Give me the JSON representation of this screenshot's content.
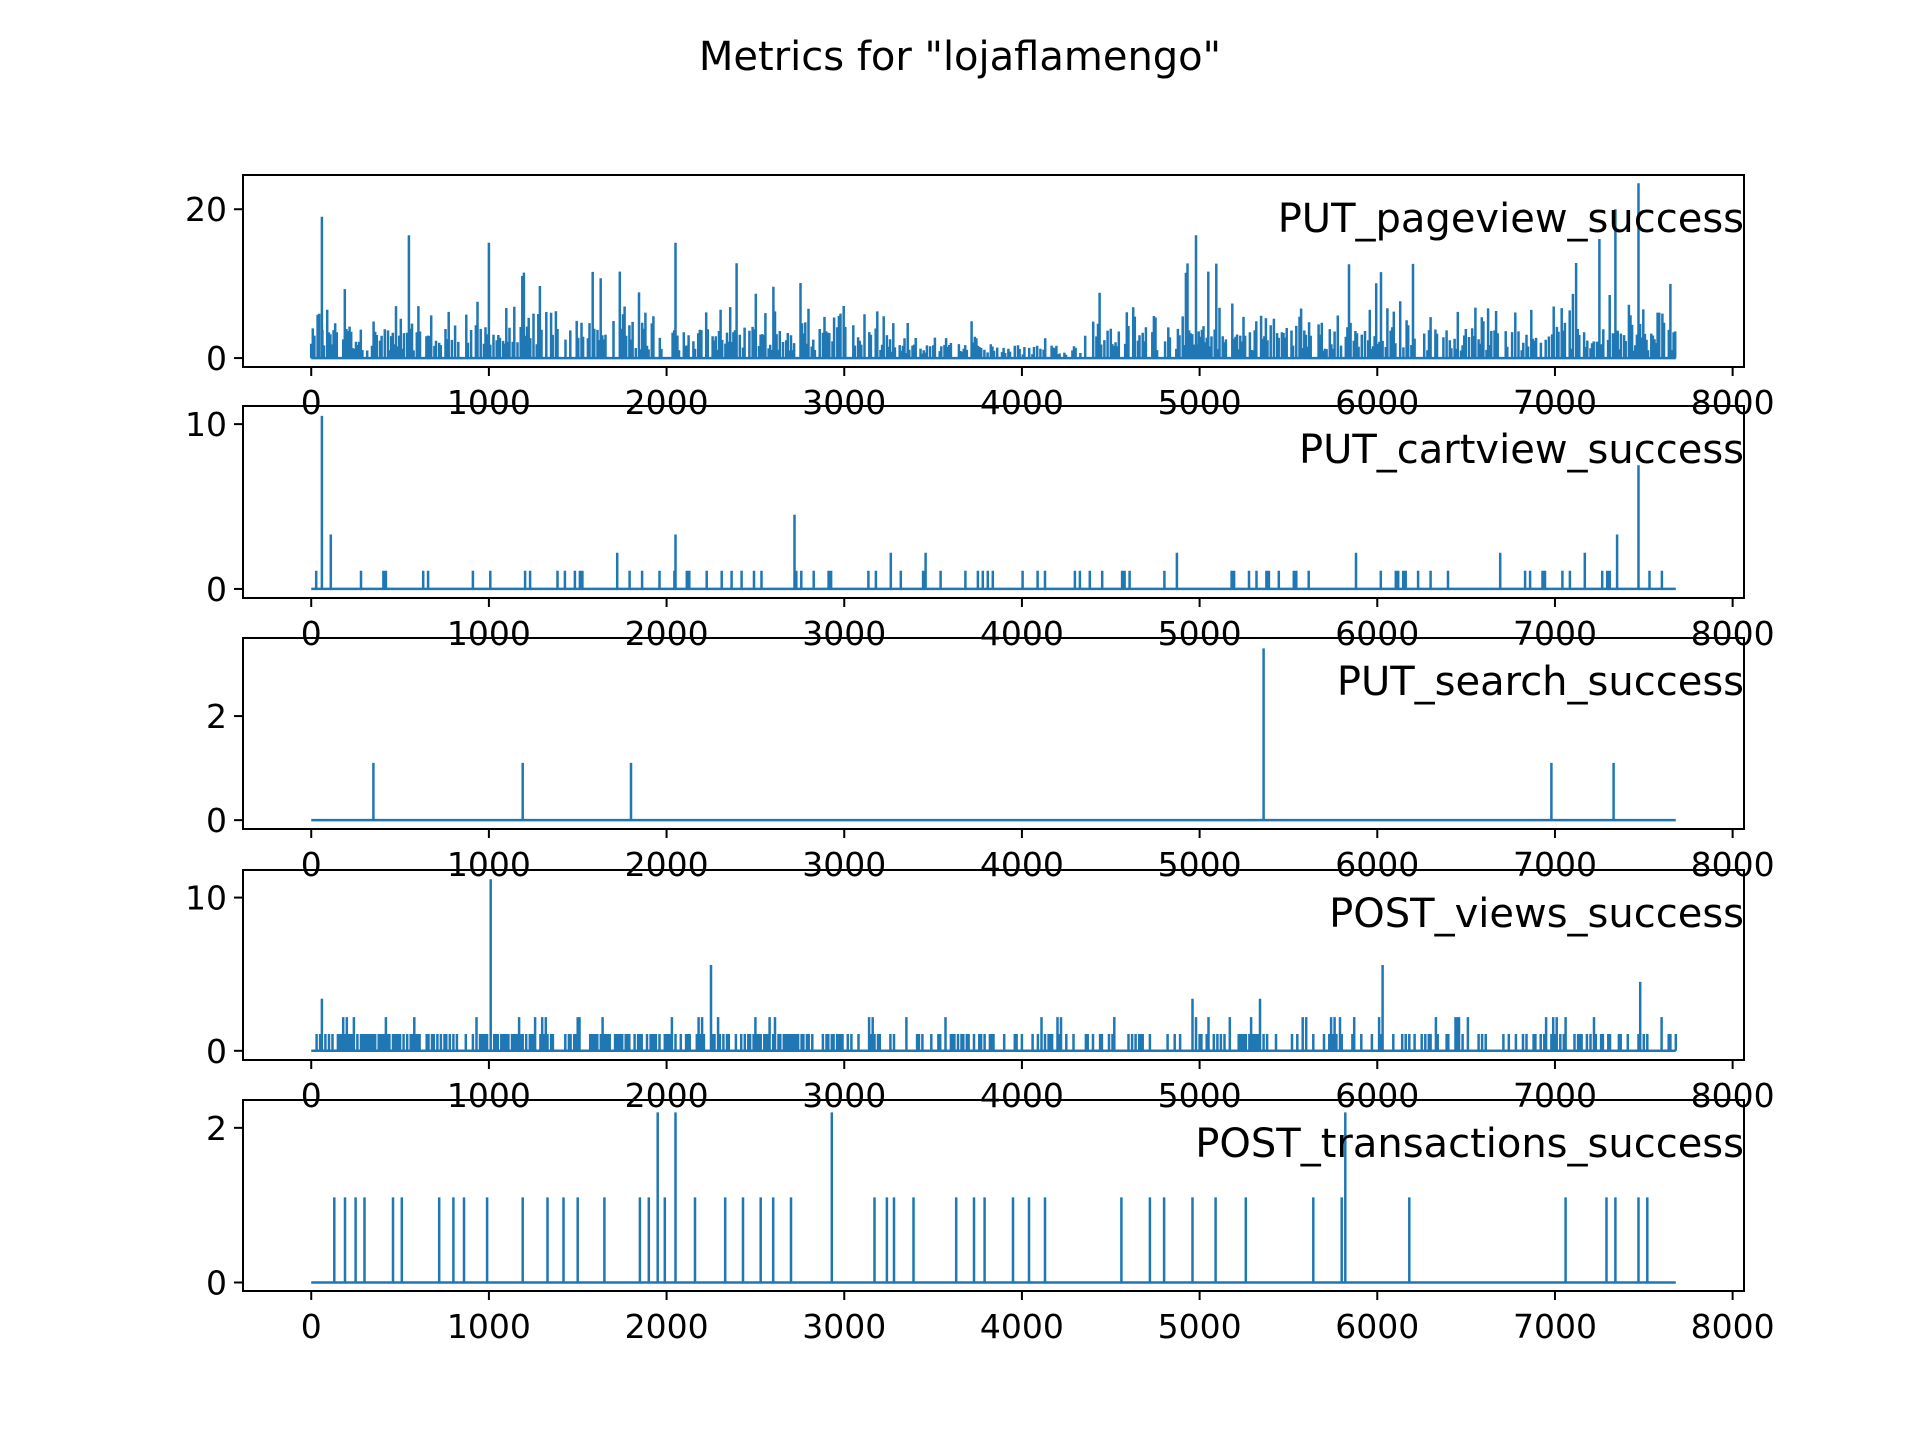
{
  "figure": {
    "title": "Metrics for \"lojaflamengo\"",
    "line_color": "#1f77b4",
    "x_ticks": [
      0,
      1000,
      2000,
      3000,
      4000,
      5000,
      6000,
      7000,
      8000
    ],
    "x_tick_labels": [
      "0",
      "1000",
      "2000",
      "3000",
      "4000",
      "5000",
      "6000",
      "7000",
      "8000"
    ]
  },
  "chart_data": [
    {
      "type": "line",
      "series": [
        {
          "name": "PUT_pageview_success",
          "x_range": [
            0,
            7680
          ]
        }
      ],
      "xlim": [
        -384,
        8064
      ],
      "ylim": [
        -1.2,
        24.6
      ],
      "y_ticks": [
        0,
        20
      ],
      "y_tick_labels": [
        "0",
        "20"
      ],
      "peaks": [
        {
          "x": 60,
          "y": 19
        },
        {
          "x": 550,
          "y": 16.5
        },
        {
          "x": 1000,
          "y": 15.5
        },
        {
          "x": 2050,
          "y": 15.5
        },
        {
          "x": 4980,
          "y": 16.5
        },
        {
          "x": 7250,
          "y": 16
        },
        {
          "x": 7340,
          "y": 20
        },
        {
          "x": 7470,
          "y": 23.5
        }
      ],
      "x_tick_labels_shown": [
        "0",
        "1000",
        "2000",
        "3000",
        "4000",
        "5000",
        "6000",
        "7000",
        "8000"
      ]
    },
    {
      "type": "line",
      "series": [
        {
          "name": "PUT_cartview_success",
          "x_range": [
            0,
            7680
          ]
        }
      ],
      "xlim": [
        -384,
        8064
      ],
      "ylim": [
        -0.55,
        11.1
      ],
      "y_ticks": [
        0,
        10
      ],
      "y_tick_labels": [
        "0",
        "10"
      ],
      "peaks": [
        {
          "x": 60,
          "y": 10.5
        },
        {
          "x": 2720,
          "y": 4.5
        },
        {
          "x": 7470,
          "y": 7.5
        },
        {
          "x": 110,
          "y": 3.3
        },
        {
          "x": 2050,
          "y": 3.3
        },
        {
          "x": 7350,
          "y": 3.3
        }
      ],
      "x_tick_labels_shown": [
        "0",
        "1000",
        "2000",
        "3000",
        "4000",
        "5000",
        "6000",
        "7000",
        "8000"
      ]
    },
    {
      "type": "line",
      "series": [
        {
          "name": "PUT_search_success",
          "x_range": [
            0,
            7680
          ]
        }
      ],
      "xlim": [
        -384,
        8064
      ],
      "ylim": [
        -0.17,
        3.5
      ],
      "y_ticks": [
        0,
        2
      ],
      "y_tick_labels": [
        "0",
        "2"
      ],
      "spikes": [
        {
          "x": 350,
          "y": 1.1
        },
        {
          "x": 1190,
          "y": 1.1
        },
        {
          "x": 1800,
          "y": 1.1
        },
        {
          "x": 5360,
          "y": 3.3
        },
        {
          "x": 6980,
          "y": 1.1
        },
        {
          "x": 7330,
          "y": 1.1
        }
      ],
      "x_tick_labels_shown": [
        "0",
        "1000",
        "2000",
        "3000",
        "4000",
        "5000",
        "6000",
        "7000",
        "8000"
      ]
    },
    {
      "type": "line",
      "series": [
        {
          "name": "POST_views_success",
          "x_range": [
            0,
            7680
          ]
        }
      ],
      "xlim": [
        -384,
        8064
      ],
      "ylim": [
        -0.6,
        11.8
      ],
      "y_ticks": [
        0,
        10
      ],
      "y_tick_labels": [
        "0",
        "10"
      ],
      "peaks": [
        {
          "x": 1010,
          "y": 11.2
        },
        {
          "x": 2250,
          "y": 5.6
        },
        {
          "x": 6030,
          "y": 5.6
        },
        {
          "x": 7480,
          "y": 4.5
        },
        {
          "x": 60,
          "y": 3.4
        },
        {
          "x": 4960,
          "y": 3.4
        },
        {
          "x": 5340,
          "y": 3.4
        }
      ],
      "x_tick_labels_shown": [
        "0",
        "1000",
        "2000",
        "3000",
        "4000",
        "5000",
        "6000",
        "7000",
        "8000"
      ]
    },
    {
      "type": "line",
      "series": [
        {
          "name": "POST_transactions_success",
          "x_range": [
            0,
            7680
          ]
        }
      ],
      "xlim": [
        -384,
        8064
      ],
      "ylim": [
        -0.11,
        2.36
      ],
      "y_ticks": [
        0,
        2
      ],
      "y_tick_labels": [
        "0",
        "2"
      ],
      "spikes_value_2": [
        1950,
        2050,
        2930,
        5820
      ],
      "spikes_value_1": [
        130,
        190,
        250,
        300,
        460,
        510,
        720,
        800,
        860,
        990,
        1190,
        1330,
        1420,
        1500,
        1650,
        1850,
        1900,
        1990,
        2160,
        2330,
        2430,
        2530,
        2600,
        2700,
        3170,
        3240,
        3280,
        3390,
        3630,
        3730,
        3790,
        3950,
        4040,
        4130,
        4560,
        4720,
        4800,
        4960,
        5090,
        5260,
        5640,
        5800,
        6180,
        7060,
        7290,
        7340,
        7470,
        7520
      ],
      "x_tick_labels_shown": [
        "0",
        "1000",
        "2000",
        "3000",
        "4000",
        "5000",
        "6000",
        "7000",
        "8000"
      ]
    }
  ]
}
